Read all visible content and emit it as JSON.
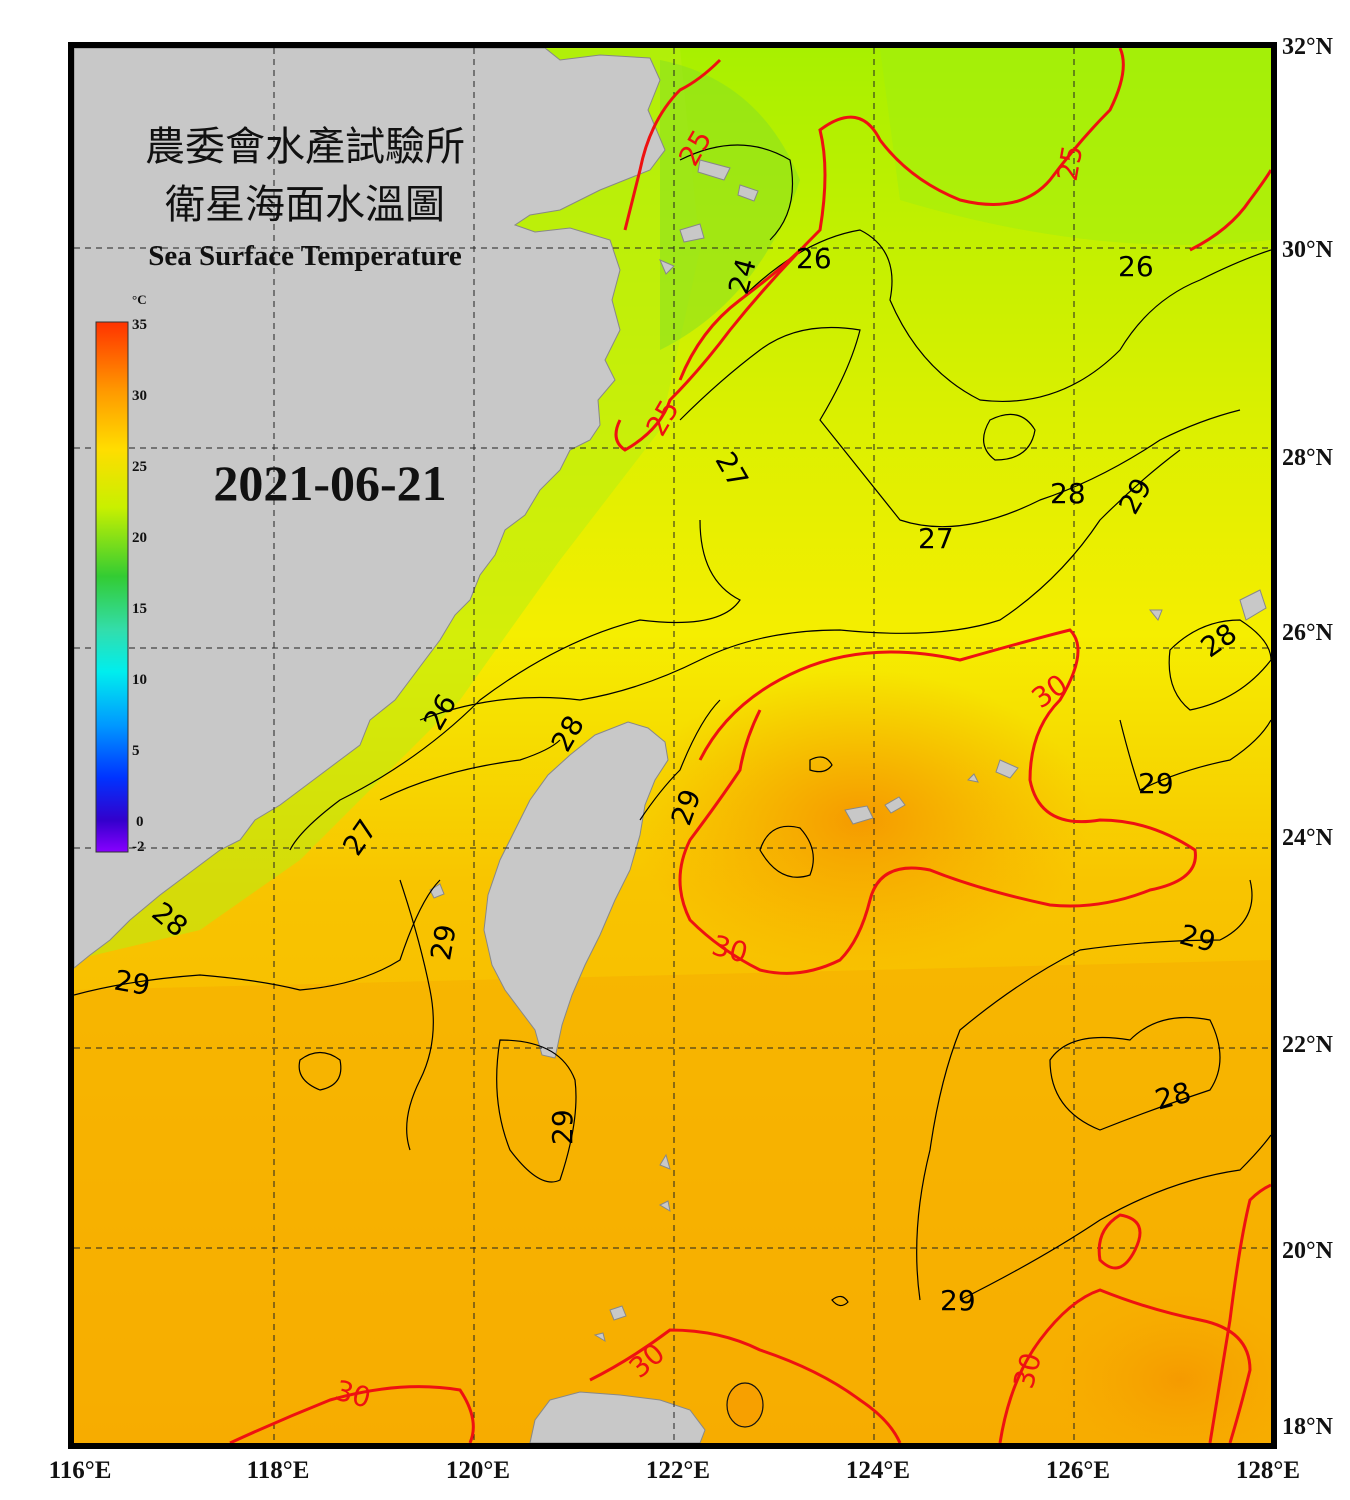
{
  "title": {
    "zh_line1": "農委會水產試驗所",
    "zh_line2": "衛星海面水溫圖",
    "en": "Sea Surface Temperature"
  },
  "date": "2021-06-21",
  "colorbar": {
    "unit": "°C",
    "ticks": [
      "35",
      "30",
      "25",
      "20",
      "15",
      "10",
      "5",
      "0",
      "-2"
    ],
    "colors": [
      "#ff3300",
      "#ff9900",
      "#ffdd00",
      "#c8f000",
      "#33cc33",
      "#33ddaa",
      "#00eeee",
      "#0099ff",
      "#0033ff",
      "#3300cc",
      "#8800ff"
    ]
  },
  "axes": {
    "lon_labels": [
      "116°E",
      "118°E",
      "120°E",
      "122°E",
      "124°E",
      "126°E",
      "128°E"
    ],
    "lat_labels": [
      "32°N",
      "30°N",
      "28°N",
      "26°N",
      "24°N",
      "22°N",
      "20°N",
      "18°N"
    ]
  },
  "contour_labels": {
    "c25_a": "25",
    "c25_b": "25",
    "c25_c": "25",
    "c24": "24",
    "c26_a": "26",
    "c26_b": "26",
    "c26_c": "26",
    "c27_a": "27",
    "c27_b": "27",
    "c27_c": "27",
    "c28_a": "28",
    "c28_b": "28",
    "c28_c": "28",
    "c28_d": "28",
    "c28_e": "28",
    "c29_a": "29",
    "c29_b": "29",
    "c29_c": "29",
    "c29_d": "29",
    "c29_e": "29",
    "c29_f": "29",
    "c29_g": "29",
    "c29_h": "29",
    "c30_a": "30",
    "c30_b": "30",
    "c30_c": "30",
    "c30_d": "30",
    "c30_e": "30"
  },
  "colors": {
    "land": "#c8c8c8",
    "frame": "#000000",
    "contour_major": "#ee1111",
    "contour_minor": "#000000"
  }
}
